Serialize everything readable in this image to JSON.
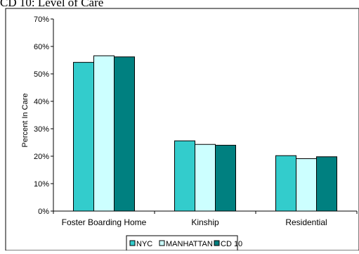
{
  "chart_data": {
    "type": "bar",
    "title": "CD 10: Level of Care",
    "xlabel": "",
    "ylabel": "Percent In Care",
    "ylim": [
      0,
      70
    ],
    "yticks": [
      0,
      10,
      20,
      30,
      40,
      50,
      60,
      70
    ],
    "ytick_labels": [
      "0%",
      "10%",
      "20%",
      "30%",
      "40%",
      "50%",
      "60%",
      "70%"
    ],
    "categories": [
      "Foster Boarding Home",
      "Kinship",
      "Residential"
    ],
    "series": [
      {
        "name": "NYC",
        "color": "#33cccc",
        "values": [
          54.2,
          25.6,
          20.2
        ]
      },
      {
        "name": "MANHATTAN",
        "color": "#ccffff",
        "values": [
          56.6,
          24.3,
          19.1
        ]
      },
      {
        "name": "CD 10",
        "color": "#008080",
        "values": [
          56.2,
          24.0,
          19.8
        ]
      }
    ],
    "grid": false,
    "legend_position": "bottom"
  }
}
